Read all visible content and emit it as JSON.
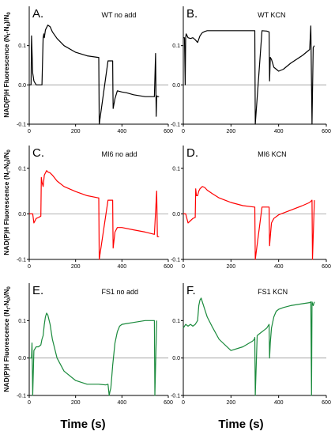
{
  "figure": {
    "xlabel": "Time (s)",
    "ylabel_rows": [
      "NAD(P)H Fluorescence (N<sub>t</sub>-N<sub>0</sub>)/N<sub>0</sub>",
      "NAD(P)H Fluorescence (N<sub>t</sub>-N<sub>0</sub>)/N<sub>0</sub>",
      "NAD(P)H Fluorescence (N<sub>t</sub>-N<sub>0</sub>)/N<sub>0</sub>"
    ],
    "ylabel_rows_plain": [
      "NAD(P)H Fluorescence (Nt-N0)/N0",
      "NAD(P)H Fluorescence (Nt-N0)/N0",
      "NAD(P)H Fluorescence (Nt-N0)/N0"
    ]
  },
  "chart_data": [
    {
      "type": "line",
      "panel": "A.",
      "title": "WT no add",
      "color": "#000000",
      "xlim": [
        0,
        600
      ],
      "ylim": [
        -0.1,
        0.2
      ],
      "xticks": [
        0,
        200,
        400,
        600
      ],
      "yticks": [
        -0.1,
        0.0,
        0.1
      ],
      "baseline": 0,
      "series": [
        {
          "x": [
            0,
            8,
            10,
            15,
            20,
            25,
            30,
            35,
            40,
            45,
            50,
            55,
            60,
            63,
            65,
            70,
            80,
            90,
            100,
            120,
            150,
            200,
            250,
            298,
            300,
            302,
            340,
            360,
            361,
            362,
            370,
            380,
            400,
            420,
            450,
            500,
            540,
            545,
            548,
            550,
            555,
            560
          ],
          "y": [
            0.0,
            0.0,
            0.125,
            0.03,
            0.01,
            0.005,
            0.0,
            0.0,
            0.0,
            0.0,
            0.0,
            0.0,
            0.12,
            0.13,
            0.12,
            0.14,
            0.152,
            0.148,
            0.135,
            0.118,
            0.1,
            0.083,
            0.074,
            0.07,
            0.07,
            -0.1,
            0.061,
            0.061,
            -0.01,
            -0.06,
            -0.035,
            -0.015,
            -0.018,
            -0.02,
            -0.025,
            -0.03,
            -0.03,
            0.08,
            -0.08,
            -0.028,
            -0.03,
            -0.03
          ]
        }
      ]
    },
    {
      "type": "line",
      "panel": "B.",
      "title": "WT KCN",
      "color": "#000000",
      "xlim": [
        0,
        600
      ],
      "ylim": [
        -0.1,
        0.2
      ],
      "xticks": [
        0,
        200,
        400,
        600
      ],
      "yticks": [
        -0.1,
        0.0,
        0.1
      ],
      "baseline": 0,
      "series": [
        {
          "x": [
            0,
            5,
            8,
            10,
            12,
            20,
            30,
            40,
            50,
            60,
            70,
            80,
            90,
            100,
            150,
            200,
            250,
            298,
            300,
            302,
            330,
            350,
            360,
            362,
            365,
            370,
            380,
            400,
            420,
            450,
            500,
            530,
            535,
            540,
            545,
            550
          ],
          "y": [
            0.12,
            0.12,
            0.0,
            0.12,
            0.13,
            0.12,
            0.118,
            0.12,
            0.115,
            0.108,
            0.125,
            0.133,
            0.136,
            0.138,
            0.138,
            0.138,
            0.138,
            0.138,
            0.138,
            -0.1,
            0.138,
            0.137,
            0.135,
            0.01,
            0.07,
            0.065,
            0.045,
            0.035,
            0.04,
            0.055,
            0.075,
            0.09,
            0.15,
            -0.1,
            0.095,
            0.1
          ]
        }
      ]
    },
    {
      "type": "line",
      "panel": "C.",
      "title": "MI6 no add",
      "color": "#ff0000",
      "xlim": [
        0,
        600
      ],
      "ylim": [
        -0.1,
        0.15
      ],
      "xticks": [
        0,
        200,
        400,
        600
      ],
      "yticks": [
        -0.1,
        0.0,
        0.1
      ],
      "baseline": 0,
      "series": [
        {
          "x": [
            0,
            10,
            15,
            20,
            30,
            40,
            50,
            52,
            55,
            60,
            65,
            70,
            75,
            80,
            90,
            100,
            120,
            150,
            200,
            250,
            298,
            300,
            302,
            340,
            360,
            361,
            362,
            370,
            380,
            400,
            450,
            500,
            540,
            550,
            553,
            560
          ],
          "y": [
            0.0,
            0.0,
            0.0,
            -0.02,
            -0.01,
            -0.008,
            -0.005,
            0.08,
            0.07,
            0.06,
            0.085,
            0.09,
            0.095,
            0.092,
            0.09,
            0.085,
            0.072,
            0.06,
            0.049,
            0.04,
            0.035,
            0.035,
            -0.1,
            0.03,
            0.03,
            -0.03,
            -0.075,
            -0.04,
            -0.03,
            -0.03,
            -0.035,
            -0.04,
            -0.045,
            0.05,
            -0.05,
            -0.05
          ]
        }
      ]
    },
    {
      "type": "line",
      "panel": "D.",
      "title": "MI6 KCN",
      "color": "#ff0000",
      "xlim": [
        0,
        600
      ],
      "ylim": [
        -0.1,
        0.15
      ],
      "xticks": [
        0,
        200,
        400,
        600
      ],
      "yticks": [
        -0.1,
        0.0,
        0.1
      ],
      "baseline": 0,
      "series": [
        {
          "x": [
            0,
            10,
            20,
            30,
            40,
            50,
            52,
            55,
            60,
            65,
            70,
            80,
            90,
            100,
            120,
            150,
            200,
            250,
            298,
            300,
            302,
            330,
            350,
            358,
            360,
            362,
            365,
            370,
            380,
            400,
            450,
            500,
            530,
            540,
            542,
            550
          ],
          "y": [
            0.0,
            0.0,
            -0.02,
            -0.015,
            -0.01,
            -0.008,
            0.055,
            0.04,
            0.04,
            0.05,
            0.055,
            0.06,
            0.058,
            0.052,
            0.045,
            0.035,
            0.025,
            0.018,
            0.015,
            0.015,
            -0.1,
            0.015,
            0.015,
            0.015,
            0.015,
            -0.07,
            -0.05,
            -0.02,
            -0.01,
            -0.002,
            0.008,
            0.018,
            0.025,
            0.03,
            -0.1,
            0.03
          ]
        }
      ]
    },
    {
      "type": "line",
      "panel": "E.",
      "title": "FS1 no add",
      "color": "#1a8a3c",
      "xlim": [
        0,
        600
      ],
      "ylim": [
        -0.1,
        0.2
      ],
      "xticks": [
        0,
        200,
        400,
        600
      ],
      "yticks": [
        -0.1,
        0.0,
        0.1
      ],
      "baseline": 0,
      "series": [
        {
          "x": [
            0,
            10,
            12,
            15,
            20,
            30,
            40,
            50,
            55,
            60,
            65,
            70,
            75,
            80,
            90,
            100,
            120,
            150,
            200,
            250,
            300,
            330,
            340,
            345,
            348,
            352,
            355,
            360,
            370,
            380,
            390,
            400,
            420,
            450,
            500,
            540,
            542,
            550
          ],
          "y": [
            0.0,
            0.0,
            0.04,
            -0.1,
            0.02,
            0.03,
            0.03,
            0.035,
            0.05,
            0.06,
            0.09,
            0.11,
            0.12,
            0.115,
            0.09,
            0.05,
            0.0,
            -0.035,
            -0.06,
            -0.07,
            -0.07,
            -0.072,
            -0.07,
            -0.1,
            -0.09,
            -0.08,
            -0.06,
            -0.02,
            0.04,
            0.07,
            0.085,
            0.09,
            0.092,
            0.095,
            0.1,
            0.1,
            -0.1,
            0.1
          ]
        }
      ]
    },
    {
      "type": "line",
      "panel": "F.",
      "title": "FS1 KCN",
      "color": "#1a8a3c",
      "xlim": [
        0,
        600
      ],
      "ylim": [
        -0.1,
        0.2
      ],
      "xticks": [
        0,
        200,
        400,
        600
      ],
      "yticks": [
        -0.1,
        0.0,
        0.1
      ],
      "baseline": 0,
      "series": [
        {
          "x": [
            0,
            10,
            20,
            30,
            40,
            50,
            60,
            65,
            70,
            75,
            80,
            90,
            100,
            120,
            150,
            200,
            250,
            290,
            298,
            300,
            302,
            310,
            320,
            340,
            350,
            360,
            362,
            365,
            370,
            380,
            390,
            400,
            420,
            450,
            500,
            530,
            535,
            538,
            540,
            545,
            550
          ],
          "y": [
            0.08,
            0.09,
            0.085,
            0.09,
            0.085,
            0.09,
            0.1,
            0.14,
            0.155,
            0.16,
            0.15,
            0.13,
            0.11,
            0.085,
            0.05,
            0.02,
            0.03,
            0.045,
            0.05,
            0.055,
            -0.1,
            0.06,
            0.065,
            0.075,
            0.08,
            0.09,
            0.0,
            0.04,
            0.08,
            0.11,
            0.125,
            0.13,
            0.135,
            0.14,
            0.145,
            0.148,
            0.15,
            -0.1,
            0.15,
            0.14,
            0.15
          ]
        }
      ]
    }
  ]
}
